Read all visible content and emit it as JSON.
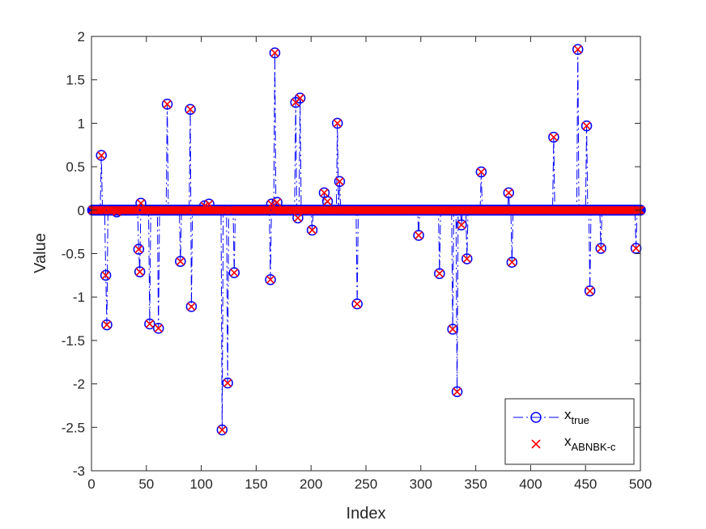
{
  "chart_data": {
    "type": "scatter",
    "xlabel": "Index",
    "ylabel": "Value",
    "xlim": [
      0,
      500
    ],
    "ylim": [
      -3,
      2
    ],
    "xticks": [
      0,
      50,
      100,
      150,
      200,
      250,
      300,
      350,
      400,
      450,
      500
    ],
    "yticks": [
      -3,
      -2.5,
      -2,
      -1.5,
      -1,
      -0.5,
      0,
      0.5,
      1,
      1.5,
      2
    ],
    "xtick_labels": [
      "0",
      "50",
      "100",
      "150",
      "200",
      "250",
      "300",
      "350",
      "400",
      "450",
      "500"
    ],
    "ytick_labels": [
      "-3",
      "-2.5",
      "-2",
      "-1.5",
      "-1",
      "-0.5",
      "0",
      "0.5",
      "1",
      "1.5",
      "2"
    ],
    "grid": false,
    "legend_position": "bottom-right",
    "n_points": 500,
    "series": [
      {
        "name": "true",
        "legend_base": "x",
        "legend_sub": "true",
        "style": "dash-dot line with circle markers",
        "color": "#0000ff",
        "nonzero": [
          {
            "x": 9,
            "y": 0.63
          },
          {
            "x": 13,
            "y": -0.75
          },
          {
            "x": 14,
            "y": -1.32
          },
          {
            "x": 23,
            "y": -0.02
          },
          {
            "x": 43,
            "y": -0.45
          },
          {
            "x": 44,
            "y": -0.71
          },
          {
            "x": 45,
            "y": 0.08
          },
          {
            "x": 53,
            "y": -1.31
          },
          {
            "x": 61,
            "y": -1.36
          },
          {
            "x": 69,
            "y": 1.22
          },
          {
            "x": 81,
            "y": -0.59
          },
          {
            "x": 90,
            "y": 1.16
          },
          {
            "x": 91,
            "y": -1.11
          },
          {
            "x": 103,
            "y": 0.05
          },
          {
            "x": 107,
            "y": 0.07
          },
          {
            "x": 119,
            "y": -2.53
          },
          {
            "x": 124,
            "y": -1.99
          },
          {
            "x": 130,
            "y": -0.72
          },
          {
            "x": 163,
            "y": -0.8
          },
          {
            "x": 164,
            "y": 0.07
          },
          {
            "x": 167,
            "y": 1.81
          },
          {
            "x": 169,
            "y": 0.09
          },
          {
            "x": 186,
            "y": 1.24
          },
          {
            "x": 188,
            "y": -0.09
          },
          {
            "x": 190,
            "y": 1.29
          },
          {
            "x": 201,
            "y": -0.23
          },
          {
            "x": 212,
            "y": 0.2
          },
          {
            "x": 215,
            "y": 0.1
          },
          {
            "x": 224,
            "y": 1.0
          },
          {
            "x": 226,
            "y": 0.33
          },
          {
            "x": 242,
            "y": -1.08
          },
          {
            "x": 298,
            "y": -0.29
          },
          {
            "x": 317,
            "y": -0.73
          },
          {
            "x": 329,
            "y": -1.37
          },
          {
            "x": 333,
            "y": -2.09
          },
          {
            "x": 337,
            "y": -0.17
          },
          {
            "x": 342,
            "y": -0.56
          },
          {
            "x": 355,
            "y": 0.44
          },
          {
            "x": 380,
            "y": 0.2
          },
          {
            "x": 383,
            "y": -0.6
          },
          {
            "x": 421,
            "y": 0.84
          },
          {
            "x": 443,
            "y": 1.85
          },
          {
            "x": 451,
            "y": 0.97
          },
          {
            "x": 454,
            "y": -0.93
          },
          {
            "x": 464,
            "y": -0.44
          },
          {
            "x": 496,
            "y": -0.44
          }
        ],
        "other_values": 0
      },
      {
        "name": "ABNBK-c",
        "legend_base": "x",
        "legend_sub": "ABNBK-c",
        "style": "x markers only",
        "color": "#ff0000",
        "same_as": "true"
      }
    ]
  }
}
